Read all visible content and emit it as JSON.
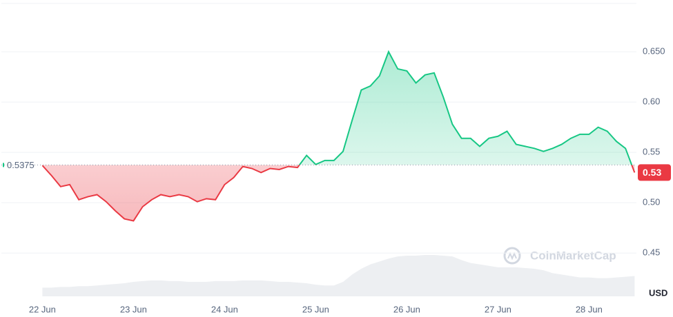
{
  "chart_data": {
    "type": "line",
    "x": [
      0,
      0.1,
      0.2,
      0.3,
      0.4,
      0.5,
      0.6,
      0.7,
      0.8,
      0.9,
      1,
      1.1,
      1.2,
      1.3,
      1.4,
      1.5,
      1.6,
      1.7,
      1.8,
      1.9,
      2,
      2.1,
      2.2,
      2.3,
      2.4,
      2.5,
      2.6,
      2.7,
      2.8,
      2.9,
      3,
      3.1,
      3.2,
      3.3,
      3.4,
      3.5,
      3.6,
      3.7,
      3.8,
      3.9,
      4,
      4.1,
      4.2,
      4.3,
      4.4,
      4.5,
      4.6,
      4.7,
      4.8,
      4.9,
      5,
      5.1,
      5.2,
      5.3,
      5.4,
      5.5,
      5.6,
      5.7,
      5.8,
      5.9,
      6,
      6.1,
      6.2,
      6.3,
      6.4,
      6.5
    ],
    "values": [
      0.537,
      0.527,
      0.516,
      0.518,
      0.503,
      0.506,
      0.508,
      0.501,
      0.492,
      0.484,
      0.482,
      0.496,
      0.503,
      0.508,
      0.506,
      0.508,
      0.506,
      0.501,
      0.504,
      0.503,
      0.518,
      0.525,
      0.536,
      0.534,
      0.53,
      0.534,
      0.533,
      0.536,
      0.535,
      0.547,
      0.538,
      0.542,
      0.542,
      0.551,
      0.582,
      0.612,
      0.616,
      0.626,
      0.65,
      0.633,
      0.631,
      0.619,
      0.627,
      0.629,
      0.605,
      0.578,
      0.564,
      0.564,
      0.556,
      0.564,
      0.566,
      0.571,
      0.558,
      0.556,
      0.554,
      0.551,
      0.554,
      0.558,
      0.564,
      0.568,
      0.568,
      0.575,
      0.571,
      0.561,
      0.554,
      0.53
    ],
    "volume": [
      12,
      12,
      13,
      13,
      14,
      14,
      15,
      16,
      17,
      18,
      20,
      21,
      22,
      22,
      21,
      21,
      20,
      20,
      20,
      21,
      21,
      21,
      22,
      22,
      22,
      21,
      20,
      20,
      19,
      18,
      16,
      15,
      15,
      20,
      30,
      38,
      44,
      48,
      52,
      55,
      56,
      56,
      57,
      57,
      56,
      55,
      50,
      46,
      44,
      42,
      40,
      40,
      40,
      39,
      38,
      36,
      32,
      30,
      28,
      26,
      26,
      25,
      25,
      26,
      27,
      28
    ],
    "color_up": "#16c784",
    "color_down": "#ea3943",
    "baseline": 0.5375,
    "current_price": 0.53,
    "xlim": [
      -0.45,
      6.52
    ],
    "xticks": [
      {
        "value": 0,
        "label": "22 Jun"
      },
      {
        "value": 1,
        "label": "23 Jun"
      },
      {
        "value": 2,
        "label": "24 Jun"
      },
      {
        "value": 3,
        "label": "25 Jun"
      },
      {
        "value": 4,
        "label": "26 Jun"
      },
      {
        "value": 5,
        "label": "27 Jun"
      },
      {
        "value": 6,
        "label": "28 Jun"
      }
    ],
    "ylim": [
      0.407,
      0.698
    ],
    "yticks": [
      0.45,
      {
        "value": 0.5,
        "label": "0.50"
      },
      0.55,
      {
        "value": 0.6,
        "label": "0.60"
      },
      {
        "value": 0.65,
        "label": "0.650"
      }
    ],
    "grid": true,
    "currency": "USD",
    "watermark": "CoinMarketCap"
  }
}
